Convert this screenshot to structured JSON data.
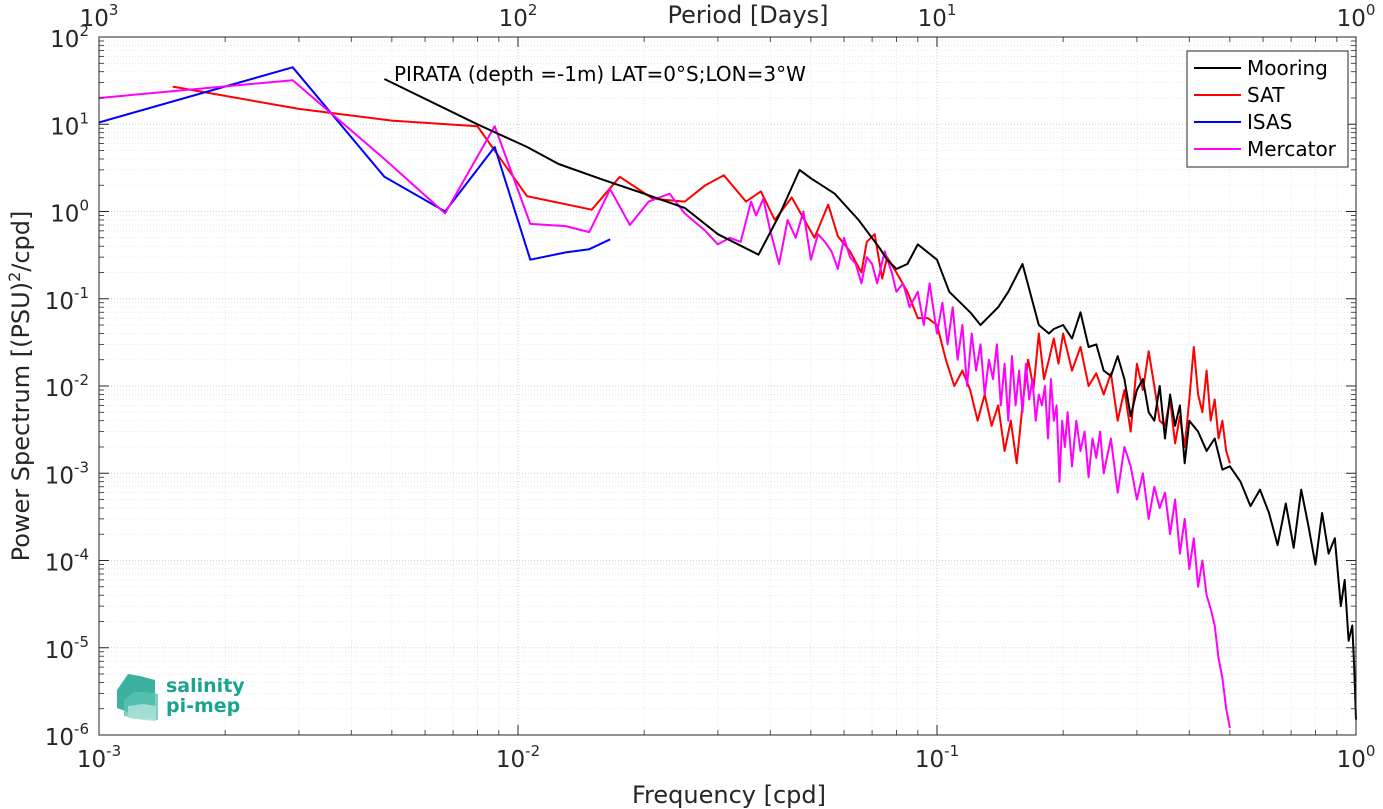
{
  "chart_data": {
    "type": "line",
    "scale": "log-log",
    "xlabel": "Frequency [cpd]",
    "ylabel_html": "Power Spectrum [(PSU)²/cpd]",
    "ylabel_parts": [
      "Power Spectrum [(PSU)",
      "2",
      "/cpd]"
    ],
    "top_xlabel": "Period [Days]",
    "annotation": "PIRATA (depth =-1m) LAT=0°S;LON=3°W",
    "xlim": [
      0.001,
      1
    ],
    "ylim": [
      1e-06,
      100
    ],
    "grid": true,
    "legend_position": "top-right",
    "x_ticks": [
      {
        "value": 0.001,
        "base": "10",
        "exp": "-3"
      },
      {
        "value": 0.01,
        "base": "10",
        "exp": "-2"
      },
      {
        "value": 0.1,
        "base": "10",
        "exp": "-1"
      },
      {
        "value": 1,
        "base": "10",
        "exp": "0"
      }
    ],
    "top_ticks": [
      {
        "value": 0.001,
        "base": "10",
        "exp": "3"
      },
      {
        "value": 0.01,
        "base": "10",
        "exp": "2"
      },
      {
        "value": 0.1,
        "base": "10",
        "exp": "1"
      },
      {
        "value": 1,
        "base": "10",
        "exp": "0"
      }
    ],
    "y_ticks": [
      {
        "value": 1e-06,
        "base": "10",
        "exp": "-6"
      },
      {
        "value": 1e-05,
        "base": "10",
        "exp": "-5"
      },
      {
        "value": 0.0001,
        "base": "10",
        "exp": "-4"
      },
      {
        "value": 0.001,
        "base": "10",
        "exp": "-3"
      },
      {
        "value": 0.01,
        "base": "10",
        "exp": "-2"
      },
      {
        "value": 0.1,
        "base": "10",
        "exp": "-1"
      },
      {
        "value": 1,
        "base": "10",
        "exp": "0"
      },
      {
        "value": 10,
        "base": "10",
        "exp": "1"
      },
      {
        "value": 100,
        "base": "10",
        "exp": "2"
      }
    ],
    "series": [
      {
        "name": "Mooring",
        "color": "#000000",
        "points": [
          [
            0.0048,
            33
          ],
          [
            0.008,
            10
          ],
          [
            0.0105,
            5.5
          ],
          [
            0.0125,
            3.5
          ],
          [
            0.016,
            2.3
          ],
          [
            0.02,
            1.6
          ],
          [
            0.025,
            1.1
          ],
          [
            0.03,
            0.55
          ],
          [
            0.0375,
            0.32
          ],
          [
            0.042,
            0.9
          ],
          [
            0.047,
            3
          ],
          [
            0.05,
            2.4
          ],
          [
            0.057,
            1.6
          ],
          [
            0.065,
            0.8
          ],
          [
            0.073,
            0.38
          ],
          [
            0.076,
            0.28
          ],
          [
            0.08,
            0.22
          ],
          [
            0.085,
            0.25
          ],
          [
            0.09,
            0.42
          ],
          [
            0.1,
            0.28
          ],
          [
            0.107,
            0.12
          ],
          [
            0.12,
            0.07
          ],
          [
            0.127,
            0.05
          ],
          [
            0.14,
            0.08
          ],
          [
            0.148,
            0.12
          ],
          [
            0.16,
            0.25
          ],
          [
            0.175,
            0.05
          ],
          [
            0.185,
            0.04
          ],
          [
            0.19,
            0.045
          ],
          [
            0.2,
            0.05
          ],
          [
            0.21,
            0.035
          ],
          [
            0.22,
            0.07
          ],
          [
            0.23,
            0.028
          ],
          [
            0.24,
            0.03
          ],
          [
            0.25,
            0.015
          ],
          [
            0.26,
            0.013
          ],
          [
            0.27,
            0.022
          ],
          [
            0.28,
            0.012
          ],
          [
            0.29,
            0.0045
          ],
          [
            0.3,
            0.009
          ],
          [
            0.31,
            0.012
          ],
          [
            0.32,
            0.005
          ],
          [
            0.33,
            0.004
          ],
          [
            0.34,
            0.01
          ],
          [
            0.35,
            0.0025
          ],
          [
            0.36,
            0.008
          ],
          [
            0.37,
            0.0035
          ],
          [
            0.38,
            0.006
          ],
          [
            0.39,
            0.0013
          ],
          [
            0.4,
            0.004
          ],
          [
            0.42,
            0.003
          ],
          [
            0.44,
            0.0018
          ],
          [
            0.46,
            0.0025
          ],
          [
            0.48,
            0.0011
          ],
          [
            0.5,
            0.0012
          ],
          [
            0.53,
            0.0008
          ],
          [
            0.56,
            0.00042
          ],
          [
            0.59,
            0.00065
          ],
          [
            0.62,
            0.00035
          ],
          [
            0.65,
            0.00015
          ],
          [
            0.68,
            0.00045
          ],
          [
            0.71,
            0.00014
          ],
          [
            0.74,
            0.00065
          ],
          [
            0.77,
            0.00025
          ],
          [
            0.8,
            9e-05
          ],
          [
            0.83,
            0.00035
          ],
          [
            0.86,
            0.00012
          ],
          [
            0.89,
            0.00018
          ],
          [
            0.92,
            3e-05
          ],
          [
            0.94,
            6e-05
          ],
          [
            0.96,
            1.2e-05
          ],
          [
            0.98,
            1.8e-05
          ],
          [
            0.99,
            6e-06
          ],
          [
            1.0,
            1.5e-06
          ]
        ]
      },
      {
        "name": "SAT",
        "color": "#ff0000",
        "points": [
          [
            0.0015,
            27
          ],
          [
            0.003,
            15
          ],
          [
            0.005,
            11
          ],
          [
            0.008,
            9.5
          ],
          [
            0.0105,
            1.5
          ],
          [
            0.015,
            1.05
          ],
          [
            0.0175,
            2.5
          ],
          [
            0.021,
            1.4
          ],
          [
            0.025,
            1.3
          ],
          [
            0.028,
            2
          ],
          [
            0.031,
            2.6
          ],
          [
            0.035,
            1.3
          ],
          [
            0.038,
            1.7
          ],
          [
            0.041,
            0.8
          ],
          [
            0.045,
            1.45
          ],
          [
            0.051,
            0.5
          ],
          [
            0.055,
            1.2
          ],
          [
            0.058,
            0.52
          ],
          [
            0.062,
            0.35
          ],
          [
            0.066,
            0.2
          ],
          [
            0.068,
            0.45
          ],
          [
            0.071,
            0.55
          ],
          [
            0.074,
            0.17
          ],
          [
            0.076,
            0.3
          ],
          [
            0.08,
            0.2
          ],
          [
            0.085,
            0.12
          ],
          [
            0.09,
            0.06
          ],
          [
            0.095,
            0.06
          ],
          [
            0.1,
            0.05
          ],
          [
            0.105,
            0.02
          ],
          [
            0.11,
            0.01
          ],
          [
            0.115,
            0.015
          ],
          [
            0.12,
            0.009
          ],
          [
            0.125,
            0.004
          ],
          [
            0.13,
            0.008
          ],
          [
            0.135,
            0.0035
          ],
          [
            0.14,
            0.006
          ],
          [
            0.145,
            0.0018
          ],
          [
            0.15,
            0.004
          ],
          [
            0.155,
            0.0013
          ],
          [
            0.16,
            0.006
          ],
          [
            0.165,
            0.02
          ],
          [
            0.17,
            0.0095
          ],
          [
            0.175,
            0.04
          ],
          [
            0.18,
            0.012
          ],
          [
            0.185,
            0.02
          ],
          [
            0.19,
            0.035
          ],
          [
            0.195,
            0.018
          ],
          [
            0.2,
            0.04
          ],
          [
            0.21,
            0.015
          ],
          [
            0.22,
            0.028
          ],
          [
            0.23,
            0.01
          ],
          [
            0.24,
            0.014
          ],
          [
            0.25,
            0.008
          ],
          [
            0.26,
            0.014
          ],
          [
            0.27,
            0.004
          ],
          [
            0.28,
            0.009
          ],
          [
            0.29,
            0.003
          ],
          [
            0.3,
            0.018
          ],
          [
            0.31,
            0.009
          ],
          [
            0.32,
            0.025
          ],
          [
            0.33,
            0.01
          ],
          [
            0.34,
            0.004
          ],
          [
            0.35,
            0.0035
          ],
          [
            0.36,
            0.007
          ],
          [
            0.37,
            0.0022
          ],
          [
            0.38,
            0.0045
          ],
          [
            0.39,
            0.002
          ],
          [
            0.4,
            0.007
          ],
          [
            0.41,
            0.028
          ],
          [
            0.42,
            0.008
          ],
          [
            0.43,
            0.005
          ],
          [
            0.44,
            0.015
          ],
          [
            0.45,
            0.004
          ],
          [
            0.46,
            0.007
          ],
          [
            0.47,
            0.0025
          ],
          [
            0.48,
            0.004
          ],
          [
            0.49,
            0.0018
          ],
          [
            0.5,
            0.0013
          ]
        ]
      },
      {
        "name": "ISAS",
        "color": "#0000ff",
        "points": [
          [
            0.001,
            10.5
          ],
          [
            0.0029,
            45
          ],
          [
            0.0048,
            2.5
          ],
          [
            0.0067,
            1.0
          ],
          [
            0.0088,
            5.5
          ],
          [
            0.0107,
            0.28
          ],
          [
            0.013,
            0.34
          ],
          [
            0.0148,
            0.37
          ],
          [
            0.0166,
            0.48
          ]
        ]
      },
      {
        "name": "Mercator",
        "color": "#ff00ff",
        "points": [
          [
            0.001,
            20
          ],
          [
            0.0029,
            32
          ],
          [
            0.0048,
            4
          ],
          [
            0.0067,
            0.95
          ],
          [
            0.0088,
            9.5
          ],
          [
            0.0107,
            0.72
          ],
          [
            0.013,
            0.68
          ],
          [
            0.0148,
            0.58
          ],
          [
            0.0166,
            1.8
          ],
          [
            0.0185,
            0.7
          ],
          [
            0.0205,
            1.3
          ],
          [
            0.023,
            1.6
          ],
          [
            0.025,
            0.95
          ],
          [
            0.028,
            0.6
          ],
          [
            0.03,
            0.42
          ],
          [
            0.032,
            0.5
          ],
          [
            0.034,
            0.45
          ],
          [
            0.036,
            1.3
          ],
          [
            0.037,
            0.9
          ],
          [
            0.0385,
            1.4
          ],
          [
            0.04,
            0.6
          ],
          [
            0.042,
            0.25
          ],
          [
            0.044,
            0.8
          ],
          [
            0.046,
            0.5
          ],
          [
            0.048,
            1.0
          ],
          [
            0.05,
            0.28
          ],
          [
            0.052,
            0.55
          ],
          [
            0.054,
            0.45
          ],
          [
            0.056,
            0.35
          ],
          [
            0.058,
            0.22
          ],
          [
            0.06,
            0.5
          ],
          [
            0.062,
            0.3
          ],
          [
            0.064,
            0.25
          ],
          [
            0.066,
            0.15
          ],
          [
            0.068,
            0.3
          ],
          [
            0.07,
            0.25
          ],
          [
            0.072,
            0.15
          ],
          [
            0.075,
            0.35
          ],
          [
            0.078,
            0.2
          ],
          [
            0.08,
            0.12
          ],
          [
            0.083,
            0.15
          ],
          [
            0.086,
            0.08
          ],
          [
            0.09,
            0.12
          ],
          [
            0.093,
            0.05
          ],
          [
            0.096,
            0.15
          ],
          [
            0.1,
            0.04
          ],
          [
            0.103,
            0.09
          ],
          [
            0.106,
            0.03
          ],
          [
            0.109,
            0.08
          ],
          [
            0.112,
            0.02
          ],
          [
            0.115,
            0.05
          ],
          [
            0.118,
            0.01
          ],
          [
            0.121,
            0.04
          ],
          [
            0.124,
            0.015
          ],
          [
            0.127,
            0.03
          ],
          [
            0.13,
            0.008
          ],
          [
            0.133,
            0.02
          ],
          [
            0.136,
            0.012
          ],
          [
            0.139,
            0.03
          ],
          [
            0.142,
            0.006
          ],
          [
            0.145,
            0.018
          ],
          [
            0.148,
            0.004
          ],
          [
            0.151,
            0.022
          ],
          [
            0.154,
            0.006
          ],
          [
            0.157,
            0.015
          ],
          [
            0.16,
            0.005
          ],
          [
            0.163,
            0.018
          ],
          [
            0.166,
            0.007
          ],
          [
            0.169,
            0.012
          ],
          [
            0.172,
            0.004
          ],
          [
            0.175,
            0.008
          ],
          [
            0.178,
            0.006
          ],
          [
            0.181,
            0.01
          ],
          [
            0.184,
            0.0025
          ],
          [
            0.187,
            0.012
          ],
          [
            0.19,
            0.004
          ],
          [
            0.193,
            0.006
          ],
          [
            0.196,
            0.0008
          ],
          [
            0.199,
            0.004
          ],
          [
            0.202,
            0.002
          ],
          [
            0.205,
            0.005
          ],
          [
            0.21,
            0.0012
          ],
          [
            0.215,
            0.004
          ],
          [
            0.22,
            0.0018
          ],
          [
            0.225,
            0.003
          ],
          [
            0.23,
            0.0009
          ],
          [
            0.235,
            0.0025
          ],
          [
            0.24,
            0.0015
          ],
          [
            0.245,
            0.003
          ],
          [
            0.25,
            0.001
          ],
          [
            0.26,
            0.0025
          ],
          [
            0.27,
            0.0006
          ],
          [
            0.28,
            0.002
          ],
          [
            0.29,
            0.0012
          ],
          [
            0.3,
            0.0005
          ],
          [
            0.31,
            0.001
          ],
          [
            0.32,
            0.0003
          ],
          [
            0.33,
            0.0007
          ],
          [
            0.34,
            0.0004
          ],
          [
            0.35,
            0.0006
          ],
          [
            0.36,
            0.0002
          ],
          [
            0.37,
            0.0005
          ],
          [
            0.38,
            0.00012
          ],
          [
            0.39,
            0.0003
          ],
          [
            0.4,
            8e-05
          ],
          [
            0.41,
            0.00018
          ],
          [
            0.42,
            5e-05
          ],
          [
            0.43,
            0.0001
          ],
          [
            0.44,
            4e-05
          ],
          [
            0.45,
            2.8e-05
          ],
          [
            0.46,
            1.8e-05
          ],
          [
            0.47,
            7.5e-06
          ],
          [
            0.48,
            4.5e-06
          ],
          [
            0.49,
            2e-06
          ],
          [
            0.5,
            1.2e-06
          ]
        ]
      }
    ]
  },
  "logo": {
    "line1": "salinity",
    "line2": "pi-mep"
  }
}
